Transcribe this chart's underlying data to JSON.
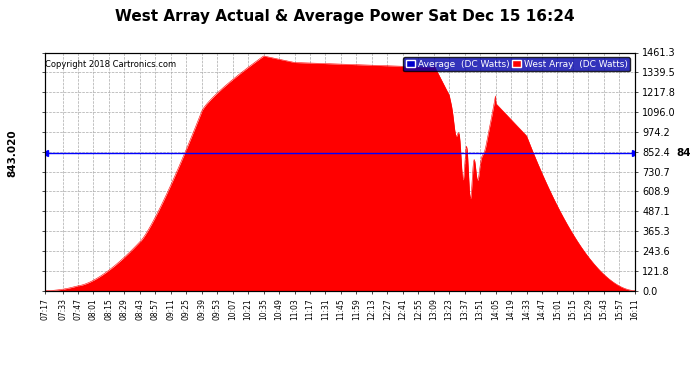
{
  "title": "West Array Actual & Average Power Sat Dec 15 16:24",
  "copyright": "Copyright 2018 Cartronics.com",
  "legend_avg": "Average  (DC Watts)",
  "legend_west": "West Array  (DC Watts)",
  "avg_value": 843.02,
  "ymax": 1461.3,
  "ymin": 0.0,
  "yticks": [
    0.0,
    121.8,
    243.6,
    365.3,
    487.1,
    608.9,
    730.7,
    852.4,
    974.2,
    1096.0,
    1217.8,
    1339.5,
    1461.3
  ],
  "ytick_labels_right": [
    "0.0",
    "121.8",
    "243.6",
    "365.3",
    "487.1",
    "608.9",
    "730.7",
    "852.4",
    "974.2",
    "1096.0",
    "1217.8",
    "1339.5",
    "1461.3"
  ],
  "xtick_labels": [
    "07:17",
    "07:33",
    "07:47",
    "08:01",
    "08:15",
    "08:29",
    "08:43",
    "08:57",
    "09:11",
    "09:25",
    "09:39",
    "09:53",
    "10:07",
    "10:21",
    "10:35",
    "10:49",
    "11:03",
    "11:17",
    "11:31",
    "11:45",
    "11:59",
    "12:13",
    "12:27",
    "12:41",
    "12:55",
    "13:09",
    "13:23",
    "13:37",
    "13:51",
    "14:05",
    "14:19",
    "14:33",
    "14:47",
    "15:01",
    "15:15",
    "15:29",
    "15:43",
    "15:57",
    "16:11"
  ],
  "background_color": "#ffffff",
  "plot_bg_color": "#ffffff",
  "grid_color": "#aaaaaa",
  "fill_color": "#ff0000",
  "line_color": "#ff0000",
  "avg_line_color": "#0000ff",
  "title_color": "#000000",
  "title_fontsize": 11,
  "avg_line_label": "843.020",
  "legend_bg": "#0000aa",
  "legend_avg_color": "#0000cc",
  "legend_west_color": "#ff0000"
}
